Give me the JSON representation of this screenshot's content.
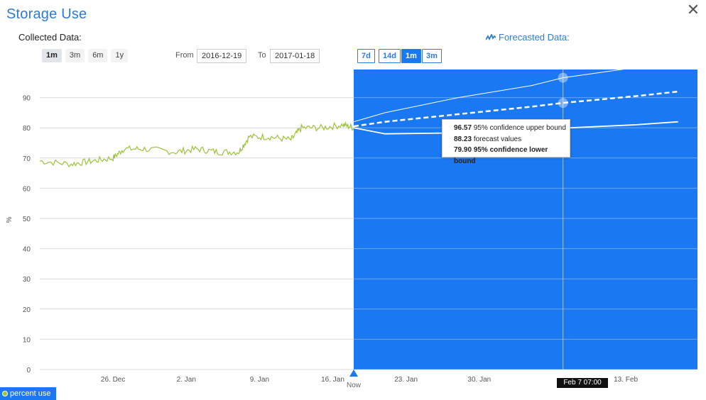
{
  "header": {
    "title": "Storage Use",
    "close_label": "✕"
  },
  "collected": {
    "label": "Collected Data:",
    "ranges": [
      "1m",
      "3m",
      "6m",
      "1y"
    ],
    "selected_range": "1m",
    "from_label": "From",
    "from_value": "2016-12-19",
    "to_label": "To",
    "to_value": "2017-01-18"
  },
  "forecast": {
    "label": "Forecasted Data:",
    "ranges": [
      "7d",
      "14d",
      "1m",
      "3m"
    ],
    "selected_range": "1m"
  },
  "tooltip": {
    "upper_value": "96.57",
    "upper_label": "95% confidence upper bound",
    "forecast_value": "88.23",
    "forecast_label": "forecast values",
    "lower_value": "79.90",
    "lower_label": "95% confidence lower bound"
  },
  "hover_date": "Feb 7 07:00",
  "legend": {
    "label": "percent use"
  },
  "colors": {
    "accent": "#2e7bd6",
    "forecast_bg": "#1a78f2",
    "series": "#9bc33a"
  },
  "chart_data": {
    "type": "line",
    "ylabel": "%",
    "ylim": [
      0,
      100
    ],
    "y_ticks": [
      0,
      10,
      20,
      30,
      40,
      50,
      60,
      70,
      80,
      90
    ],
    "x_ticks": [
      "26. Dec",
      "2. Jan",
      "9. Jan",
      "16. Jan",
      "23. Jan",
      "30. Jan",
      "13. Feb"
    ],
    "now_label": "Now",
    "series": [
      {
        "name": "percent use",
        "x": [
          "2016-12-19",
          "2016-12-22",
          "2016-12-24",
          "2016-12-26",
          "2016-12-27",
          "2016-12-29",
          "2017-01-01",
          "2017-01-03",
          "2017-01-05",
          "2017-01-07",
          "2017-01-08",
          "2017-01-10",
          "2017-01-12",
          "2017-01-13",
          "2017-01-15",
          "2017-01-17",
          "2017-01-18"
        ],
        "values": [
          69,
          68,
          69,
          70,
          73,
          73,
          72,
          73,
          72,
          72,
          77,
          77,
          76,
          80,
          80,
          81,
          80
        ]
      }
    ],
    "forecast": {
      "x": [
        "2017-01-18",
        "2017-01-21",
        "2017-01-28",
        "2017-02-04",
        "2017-02-07",
        "2017-02-14",
        "2017-02-18"
      ],
      "upper": [
        82,
        85,
        90,
        94,
        96.57,
        100,
        102
      ],
      "values": [
        80.5,
        82,
        84.5,
        87,
        88.23,
        90.5,
        92
      ],
      "lower": [
        80,
        78,
        78.3,
        79.2,
        79.9,
        81,
        82
      ]
    }
  }
}
